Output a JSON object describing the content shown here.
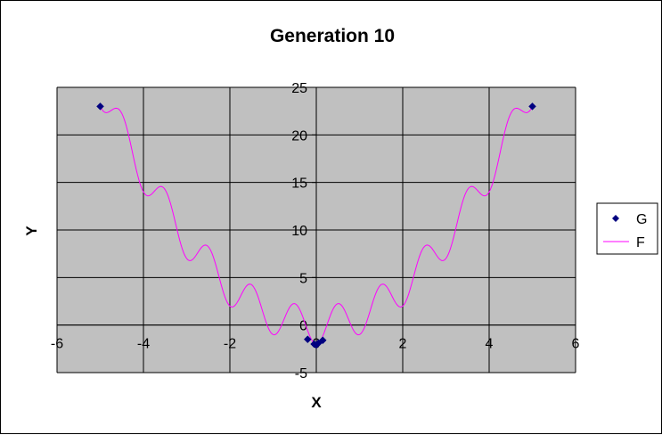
{
  "chart_data": {
    "type": "scatter",
    "title": "Generation 10",
    "xlabel": "X",
    "ylabel": "Y",
    "xlim": [
      -6,
      6
    ],
    "ylim": [
      -5,
      25
    ],
    "xticks": [
      -6,
      -4,
      -2,
      0,
      2,
      4,
      6
    ],
    "yticks": [
      -5,
      0,
      5,
      10,
      15,
      20,
      25
    ],
    "grid": true,
    "plot_background": "#c0c0c0",
    "legend_position": "right",
    "series": [
      {
        "name": "G",
        "kind": "markers",
        "marker": "diamond",
        "color": "#000080",
        "points": [
          [
            -5,
            23
          ],
          [
            -0.2,
            -1.5
          ],
          [
            -0.05,
            -2.0
          ],
          [
            0.0,
            -2.1
          ],
          [
            0.05,
            -1.9
          ],
          [
            0.15,
            -1.6
          ],
          [
            5,
            23
          ]
        ]
      },
      {
        "name": "F",
        "kind": "line",
        "color": "#ff00ff",
        "function": "x^2 - 2cos(2πx)",
        "x_range": [
          -5,
          5
        ]
      }
    ]
  }
}
